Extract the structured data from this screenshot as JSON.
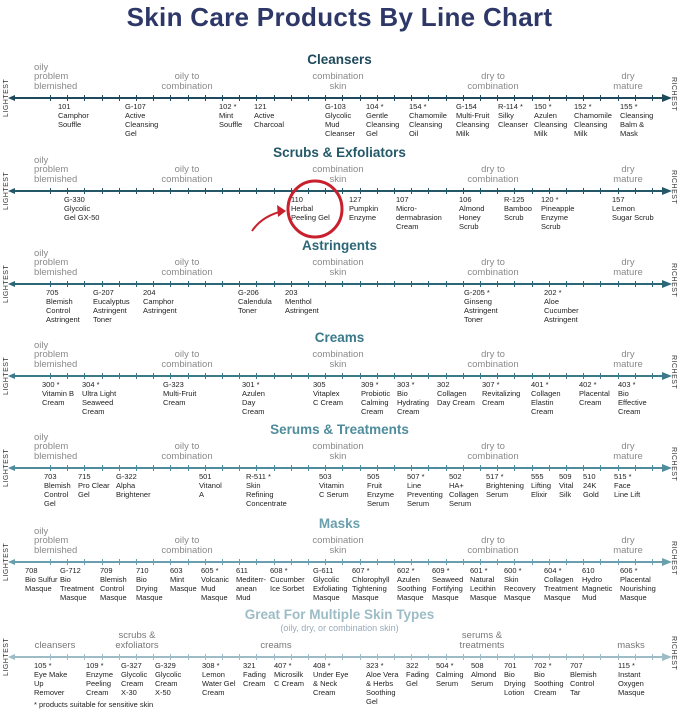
{
  "title": "Skin Care Products By Line Chart",
  "axis_left_label": "LIGHTEST",
  "axis_right_label": "RICHEST",
  "skin_types": [
    "oily\nproblem\nblemished",
    "oily to\ncombination",
    "combination\nskin",
    "dry to\ncombination",
    "dry\nmature"
  ],
  "highlight": {
    "product": "110 Herbal Peeling Gel",
    "color": "#c8202c"
  },
  "sections": [
    {
      "title": "Cleansers",
      "color": "#1f4a5c",
      "products": [
        {
          "code": "101",
          "name": "Camphor\nSouffle"
        },
        {
          "code": "G-107",
          "name": "Active\nCleansing\nGel"
        },
        {
          "code": "102 *",
          "name": "Mint\nSouffle"
        },
        {
          "code": "121",
          "name": "Active\nCharcoal"
        },
        {
          "code": "G-103",
          "name": "Glycolic\nMud\nCleanser"
        },
        {
          "code": "104 *",
          "name": "Gentle\nCleansing\nGel"
        },
        {
          "code": "154 *",
          "name": "Chamomile\nCleansing\nOil"
        },
        {
          "code": "G-154",
          "name": "Multi-Fruit\nCleansing\nMilk"
        },
        {
          "code": "R-114 *",
          "name": "Silky\nCleanser"
        },
        {
          "code": "150 *",
          "name": "Azulen\nCleansing\nMilk"
        },
        {
          "code": "152 *",
          "name": "Chamomile\nCleansing\nMilk"
        },
        {
          "code": "155 *",
          "name": "Cleansing\nBalm &\nMask"
        }
      ]
    },
    {
      "title": "Scrubs & Exfoliators",
      "color": "#245869",
      "products": [
        {
          "code": "G-330",
          "name": "Glycolic\nGel GX-50"
        },
        {
          "code": "110",
          "name": "Herbal\nPeeling Gel"
        },
        {
          "code": "127",
          "name": "Pumpkin\nEnzyme"
        },
        {
          "code": "107",
          "name": "Micro-\ndermabrasion\nCream"
        },
        {
          "code": "106",
          "name": "Almond\nHoney\nScrub"
        },
        {
          "code": "R-125",
          "name": "Bamboo\nScrub"
        },
        {
          "code": "120 *",
          "name": "Pineapple\nEnzyme\nScrub"
        },
        {
          "code": "157",
          "name": "Lemon\nSugar Scrub"
        }
      ]
    },
    {
      "title": "Astringents",
      "color": "#2c6777",
      "products": [
        {
          "code": "705",
          "name": "Blemish\nControl\nAstringent"
        },
        {
          "code": "G-207",
          "name": "Eucalyptus\nAstringent\nToner"
        },
        {
          "code": "204",
          "name": "Camphor\nAstringent"
        },
        {
          "code": "G-206",
          "name": "Calendula\nToner"
        },
        {
          "code": "203",
          "name": "Menthol\nAstringent"
        },
        {
          "code": "G-205 *",
          "name": "Ginseng\nAstringent\nToner"
        },
        {
          "code": "202 *",
          "name": "Aloe\nCucumber\nAstringent"
        }
      ]
    },
    {
      "title": "Creams",
      "color": "#3a7a8a",
      "products": [
        {
          "code": "300 *",
          "name": "Vitamin B\nCream"
        },
        {
          "code": "304 *",
          "name": "Ultra Light\nSeaweed\nCream"
        },
        {
          "code": "G-323",
          "name": "Multi-Fruit\nCream"
        },
        {
          "code": "301 *",
          "name": "Azulen\nDay\nCream"
        },
        {
          "code": "305",
          "name": "Vitaplex\nC Cream"
        },
        {
          "code": "309 *",
          "name": "Probiotic\nCalming\nCream"
        },
        {
          "code": "303 *",
          "name": "Bio\nHydrating\nCream"
        },
        {
          "code": "302",
          "name": "Collagen\nDay Cream"
        },
        {
          "code": "307 *",
          "name": "Revitalizing\nCream"
        },
        {
          "code": "401 *",
          "name": "Collagen\nElastin\nCream"
        },
        {
          "code": "402 *",
          "name": "Placental\nCream"
        },
        {
          "code": "403 *",
          "name": "Bio\nEffective\nCream"
        }
      ]
    },
    {
      "title": "Serums & Treatments",
      "color": "#4f8c9c",
      "products": [
        {
          "code": "703",
          "name": "Blemish\nControl\nGel"
        },
        {
          "code": "715",
          "name": "Pro Clear\nGel"
        },
        {
          "code": "G-322",
          "name": "Alpha\nBrightener"
        },
        {
          "code": "501",
          "name": "Vitanol\nA"
        },
        {
          "code": "R-511 *",
          "name": "Skin\nRefining\nConcentrate"
        },
        {
          "code": "503",
          "name": "Vitamin\nC Serum"
        },
        {
          "code": "505",
          "name": "Fruit\nEnzyme\nSerum"
        },
        {
          "code": "507 *",
          "name": "Line\nPreventing\nSerum"
        },
        {
          "code": "502",
          "name": "HA+\nCollagen\nSerum"
        },
        {
          "code": "517 *",
          "name": "Brightening\nSerum"
        },
        {
          "code": "555",
          "name": "Lifting\nElixir"
        },
        {
          "code": "509",
          "name": "Vital\nSilk"
        },
        {
          "code": "510",
          "name": "24K\nGold"
        },
        {
          "code": "515 *",
          "name": "Face\nLine Lift"
        }
      ]
    },
    {
      "title": "Masks",
      "color": "#6aa0ae",
      "products": [
        {
          "code": "708",
          "name": "Bio Sulfur\nMasque"
        },
        {
          "code": "G-712",
          "name": "Bio\nTreatment\nMasque"
        },
        {
          "code": "709",
          "name": "Blemish\nControl\nMasque"
        },
        {
          "code": "710",
          "name": "Bio\nDrying\nMasque"
        },
        {
          "code": "603",
          "name": "Mint\nMasque"
        },
        {
          "code": "605 *",
          "name": "Volcanic\nMud\nMasque"
        },
        {
          "code": "611",
          "name": "Mediterr-\nanean\nMud"
        },
        {
          "code": "608 *",
          "name": "Cucumber\nIce Sorbet"
        },
        {
          "code": "G-611",
          "name": "Glycolic\nExfoliating\nMasque"
        },
        {
          "code": "607 *",
          "name": "Chlorophyll\nTightening\nMasque"
        },
        {
          "code": "602 *",
          "name": "Azulen\nSoothing\nMasque"
        },
        {
          "code": "609 *",
          "name": "Seaweed\nFortifying\nMasque"
        },
        {
          "code": "601 *",
          "name": "Natural\nLecithin\nMasque"
        },
        {
          "code": "600 *",
          "name": "Skin\nRecovery\nMasque"
        },
        {
          "code": "604 *",
          "name": "Collagen\nTreatment\nMasque"
        },
        {
          "code": "610",
          "name": "Hydro\nMagnetic\nMud"
        },
        {
          "code": "606 *",
          "name": "Placental\nNourishing\nMasque"
        }
      ]
    },
    {
      "title": "Great For Multiple Skin Types",
      "subtitle": "(oily, dry, or combination skin)",
      "color": "#9dbcc6",
      "categories": [
        "cleansers",
        "scrubs &\nexfoliators",
        "creams",
        "serums &\ntreatments",
        "masks"
      ],
      "products": [
        {
          "code": "105 *",
          "name": "Eye Make\nUp\nRemover"
        },
        {
          "code": "109 *",
          "name": "Enzyme\nPeeling\nCream"
        },
        {
          "code": "G-327",
          "name": "Glycolic\nCream\nX-30"
        },
        {
          "code": "G-329",
          "name": "Glycolic\nCream\nX-50"
        },
        {
          "code": "308 *",
          "name": "Lemon\nWater Gel\nCream"
        },
        {
          "code": "321",
          "name": "Fading\nCream"
        },
        {
          "code": "407 *",
          "name": "Microsilk\nC Cream"
        },
        {
          "code": "408 *",
          "name": "Under Eye\n& Neck\nCream"
        },
        {
          "code": "323 *",
          "name": "Aloe Vera\n& Herbs\nSoothing\nGel"
        },
        {
          "code": "322",
          "name": "Fading\nGel"
        },
        {
          "code": "504 *",
          "name": "Calming\nSerum"
        },
        {
          "code": "508",
          "name": "Almond\nSerum"
        },
        {
          "code": "701",
          "name": "Bio\nDrying\nLotion"
        },
        {
          "code": "702 *",
          "name": "Bio\nSoothing\nCream"
        },
        {
          "code": "707",
          "name": "Blemish\nControl\nTar"
        },
        {
          "code": "115 *",
          "name": "Instant\nOxygen\nMasque"
        }
      ]
    }
  ],
  "footnote": "* products suitable for sensitive skin"
}
